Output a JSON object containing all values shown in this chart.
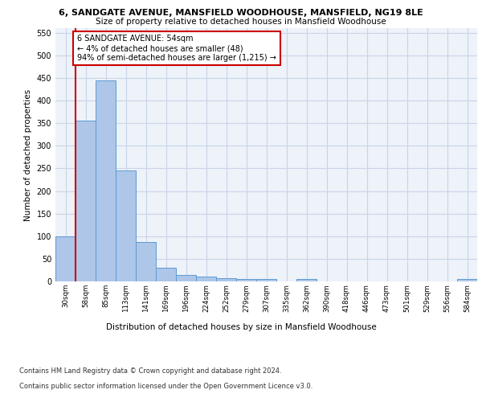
{
  "title1": "6, SANDGATE AVENUE, MANSFIELD WOODHOUSE, MANSFIELD, NG19 8LE",
  "title2": "Size of property relative to detached houses in Mansfield Woodhouse",
  "xlabel": "Distribution of detached houses by size in Mansfield Woodhouse",
  "ylabel": "Number of detached properties",
  "footer1": "Contains HM Land Registry data © Crown copyright and database right 2024.",
  "footer2": "Contains public sector information licensed under the Open Government Licence v3.0.",
  "categories": [
    "30sqm",
    "58sqm",
    "85sqm",
    "113sqm",
    "141sqm",
    "169sqm",
    "196sqm",
    "224sqm",
    "252sqm",
    "279sqm",
    "307sqm",
    "335sqm",
    "362sqm",
    "390sqm",
    "418sqm",
    "446sqm",
    "473sqm",
    "501sqm",
    "529sqm",
    "556sqm",
    "584sqm"
  ],
  "values": [
    100,
    355,
    445,
    245,
    88,
    30,
    14,
    10,
    7,
    5,
    5,
    0,
    5,
    0,
    0,
    0,
    0,
    0,
    0,
    0,
    5
  ],
  "bar_color": "#aec6e8",
  "bar_edge_color": "#5b9bd5",
  "grid_color": "#c8d4e8",
  "bg_color": "#eef2f9",
  "subject_line_color": "#cc0000",
  "annotation_text": "6 SANDGATE AVENUE: 54sqm\n← 4% of detached houses are smaller (48)\n94% of semi-detached houses are larger (1,215) →",
  "annotation_box_color": "#cc0000",
  "ylim": [
    0,
    560
  ],
  "yticks": [
    0,
    50,
    100,
    150,
    200,
    250,
    300,
    350,
    400,
    450,
    500,
    550
  ]
}
